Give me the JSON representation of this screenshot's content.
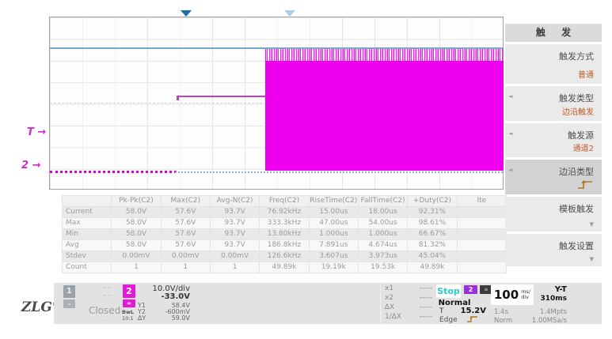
{
  "plot": {
    "trigger_marker": "T →",
    "channel2_marker": "2 →"
  },
  "trigger_menu": {
    "title": "触 发",
    "arrow_glyph": "◄",
    "items": [
      {
        "label": "触发方式",
        "value": "普通"
      },
      {
        "label": "触发类型",
        "value": "边沿触发"
      },
      {
        "label": "触发源",
        "value": "通道2"
      },
      {
        "label": "边沿类型",
        "value": ""
      },
      {
        "label": "模板触发",
        "value": "▼"
      },
      {
        "label": "触发设置",
        "value": "▼"
      }
    ]
  },
  "measurements": {
    "columns": [
      "",
      "Pk-Pk(C2)",
      "Max(C2)",
      "Avg-N(C2)",
      "Freq(C2)",
      "RiseTime(C2)",
      "FallTime(C2)",
      "+Duty(C2)",
      "Ite"
    ],
    "rows": [
      {
        "label": "Current",
        "values": [
          "58.0V",
          "57.6V",
          "93.7V",
          "76.92kHz",
          "15.00us",
          "18.00us",
          "92.31%",
          ""
        ]
      },
      {
        "label": "Max",
        "values": [
          "58.0V",
          "57.6V",
          "93.7V",
          "333.3kHz",
          "47.00us",
          "54.00us",
          "98.61%",
          ""
        ]
      },
      {
        "label": "Min",
        "values": [
          "58.0V",
          "57.6V",
          "93.7V",
          "13.80kHz",
          "1.000us",
          "1.000us",
          "66.67%",
          ""
        ]
      },
      {
        "label": "Avg",
        "values": [
          "58.0V",
          "57.6V",
          "93.7V",
          "186.8kHz",
          "7.891us",
          "4.674us",
          "81.32%",
          ""
        ]
      },
      {
        "label": "Stdev",
        "values": [
          "0.00mV",
          "0.00mV",
          "0.00mV",
          "126.6kHz",
          "3.607us",
          "3.973us",
          "45.04%",
          ""
        ]
      },
      {
        "label": "Count",
        "values": [
          "1",
          "1",
          "1",
          "49.89k",
          "19.19k",
          "19.53k",
          "49.89k",
          ""
        ]
      }
    ]
  },
  "status_bar": {
    "logo": "ZLG",
    "reg": "®",
    "channel1": {
      "badge": "1",
      "coupling": "–",
      "status": "Closed",
      "dash_top": "– –",
      "dash_mid": "– –",
      "dots": "…"
    },
    "channel2": {
      "badge": "2",
      "coupling": "≈",
      "bandwidth": "BwL",
      "probe": "10:1",
      "scale": "10.0V/div",
      "offset": "-33.0V",
      "cursors": [
        {
          "label": "Y1",
          "value": "58.4V"
        },
        {
          "label": "Y2",
          "value": "-600mV"
        },
        {
          "label": "∆Y",
          "value": "59.0V"
        }
      ]
    },
    "cursor_x": [
      {
        "label": "x1",
        "value": "-----"
      },
      {
        "label": "x2",
        "value": "-----"
      },
      {
        "label": "∆X",
        "value": "-----"
      },
      {
        "label": "1/∆X",
        "value": "-----"
      }
    ],
    "acquisition": {
      "state": "Stop",
      "mode": "Normal",
      "source_badge": "2",
      "mem_badge": "≡",
      "trigger_label": "T",
      "trigger_level": "15.2V",
      "edge_label": "Edge"
    },
    "timebase": {
      "scale": "100",
      "unit_top": "ms/",
      "unit_bottom": "div",
      "display_mode": "Y-T",
      "position": "310ms",
      "duration": "1.4s",
      "points": "1.4Mpts",
      "acq_mode": "Norm",
      "sample_rate": "1.00MSa/s"
    }
  },
  "colors": {
    "trace_magenta": "#ee00ee",
    "reference_blue": "#7ba7c5",
    "menu_value_orange": "#c05a28",
    "stop_cyan": "#2fc7c7",
    "trigger_marker_blue": "#1b6fa8"
  }
}
